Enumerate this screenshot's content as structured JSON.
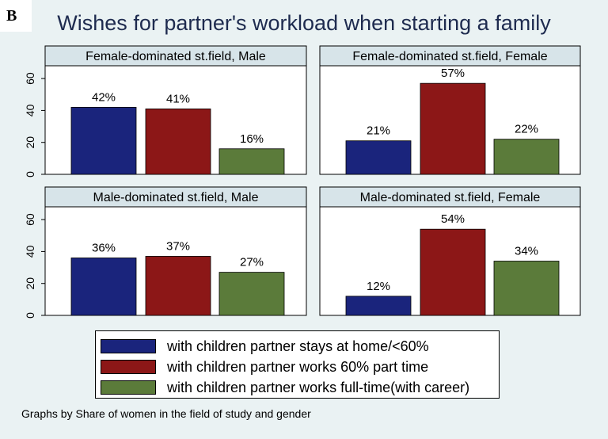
{
  "panel_letter": "B",
  "chart_data": {
    "type": "bar",
    "title": "Wishes for partner's workload when starting a family",
    "ylim": [
      0,
      68
    ],
    "yticks": [
      0,
      20,
      40,
      60
    ],
    "grid": false,
    "legend_position": "bottom",
    "series_colors": [
      "#1a247c",
      "#8c1717",
      "#5b7b3a"
    ],
    "legend": [
      "with children partner stays at home/<60%",
      "with children partner works 60% part time",
      "with children partner works full-time(with career)"
    ],
    "panels": [
      {
        "title": "Female-dominated st.field, Male",
        "values": [
          42,
          41,
          16
        ],
        "labels": [
          "42%",
          "41%",
          "16%"
        ]
      },
      {
        "title": "Female-dominated st.field, Female",
        "values": [
          21,
          57,
          22
        ],
        "labels": [
          "21%",
          "57%",
          "22%"
        ]
      },
      {
        "title": "Male-dominated st.field, Male",
        "values": [
          36,
          37,
          27
        ],
        "labels": [
          "36%",
          "37%",
          "27%"
        ]
      },
      {
        "title": "Male-dominated st.field, Female",
        "values": [
          12,
          54,
          34
        ],
        "labels": [
          "12%",
          "54%",
          "34%"
        ]
      }
    ],
    "note": "Graphs by Share of women in the field of study and gender"
  }
}
